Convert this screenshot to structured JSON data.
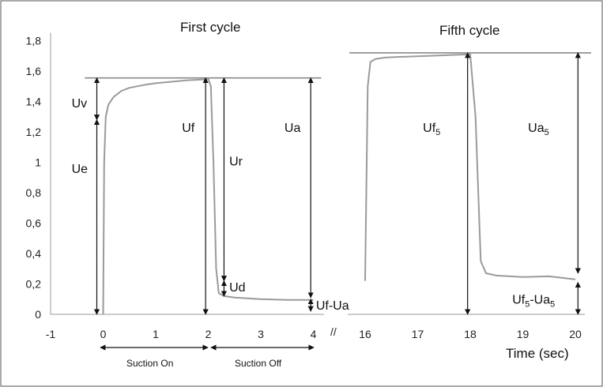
{
  "chart_data": {
    "type": "line",
    "ylim": [
      0,
      1.8
    ],
    "y_ticks": [
      "0",
      "0,2",
      "0,4",
      "0,6",
      "0,8",
      "1",
      "1,2",
      "1,4",
      "1,6",
      "1,8"
    ],
    "y_tick_values": [
      0,
      0.2,
      0.4,
      0.6,
      0.8,
      1.0,
      1.2,
      1.4,
      1.6,
      1.8
    ],
    "x_ticks_left": [
      "-1",
      "0",
      "1",
      "2",
      "3",
      "4"
    ],
    "x_tick_values_left": [
      -1,
      0,
      1,
      2,
      3,
      4
    ],
    "x_ticks_right": [
      "16",
      "17",
      "18",
      "19",
      "20"
    ],
    "x_tick_values_right": [
      16,
      17,
      18,
      19,
      20
    ],
    "xlabel": "Time (sec)",
    "grid": false,
    "axis_break": "//",
    "titles": {
      "first": "First cycle",
      "fifth": "Fifth cycle"
    },
    "phases": {
      "on": "Suction On",
      "off": "Suction Off"
    },
    "series": [
      {
        "segment": "first_cycle",
        "x": [
          0,
          0.02,
          0.05,
          0.1,
          0.2,
          0.35,
          0.5,
          0.8,
          1.0,
          1.3,
          1.6,
          1.9,
          2.0,
          2.05,
          2.1,
          2.15,
          2.2,
          2.3,
          2.5,
          3.0,
          3.5,
          4.0
        ],
        "y": [
          0,
          1.0,
          1.3,
          1.38,
          1.43,
          1.47,
          1.49,
          1.51,
          1.52,
          1.53,
          1.54,
          1.545,
          1.55,
          1.5,
          1.0,
          0.3,
          0.14,
          0.12,
          0.11,
          0.1,
          0.095,
          0.095
        ]
      },
      {
        "segment": "fifth_cycle",
        "x": [
          16.0,
          16.05,
          16.1,
          16.2,
          16.4,
          16.8,
          17.2,
          17.6,
          18.0,
          18.1,
          18.2,
          18.3,
          18.5,
          19.0,
          19.5,
          20.0
        ],
        "y": [
          0.22,
          1.5,
          1.66,
          1.68,
          1.69,
          1.695,
          1.7,
          1.705,
          1.71,
          1.3,
          0.35,
          0.27,
          0.255,
          0.245,
          0.25,
          0.23
        ]
      }
    ],
    "reference_lines": [
      {
        "y": 1.555,
        "x_from": -0.35,
        "x_to": 4.15
      },
      {
        "y": 1.72,
        "x_from": 15.7,
        "x_to": 20.3
      }
    ],
    "annotations": [
      {
        "label": "Uv",
        "x": -0.12,
        "y1": 1.28,
        "y2": 1.555,
        "text_x": -0.6,
        "text_y": 1.36
      },
      {
        "label": "Ue",
        "x": -0.12,
        "y1": 0.0,
        "y2": 1.28,
        "text_x": -0.6,
        "text_y": 0.93
      },
      {
        "label": "Uf",
        "x": 1.95,
        "y1": 0.0,
        "y2": 1.555,
        "text_x": 1.5,
        "text_y": 1.2
      },
      {
        "label": "Ur",
        "x": 2.3,
        "y1": 0.22,
        "y2": 1.555,
        "text_x": 2.4,
        "text_y": 0.98
      },
      {
        "label": "Ud",
        "x": 2.3,
        "y1": 0.12,
        "y2": 0.22,
        "text_x": 2.4,
        "text_y": 0.15
      },
      {
        "label": "Ua",
        "x": 3.95,
        "y1": 0.11,
        "y2": 1.555,
        "text_x": 3.45,
        "text_y": 1.2
      },
      {
        "label": "Uf-Ua",
        "x": 3.95,
        "y1": 0.02,
        "y2": 0.1,
        "text_x": 4.05,
        "text_y": 0.03
      },
      {
        "label": "Uf",
        "sub": "5",
        "x": 17.95,
        "y1": 0.0,
        "y2": 1.72,
        "text_x": 17.1,
        "text_y": 1.2
      },
      {
        "label": "Ua",
        "sub": "5",
        "x": 20.05,
        "y1": 0.27,
        "y2": 1.72,
        "text_x": 19.1,
        "text_y": 1.2
      },
      {
        "label": "Uf",
        "sub": "5",
        "label2": "-Ua",
        "sub2": "5",
        "x": 20.05,
        "y1": 0.0,
        "y2": 0.21,
        "text_x": 18.8,
        "text_y": 0.07
      }
    ]
  }
}
